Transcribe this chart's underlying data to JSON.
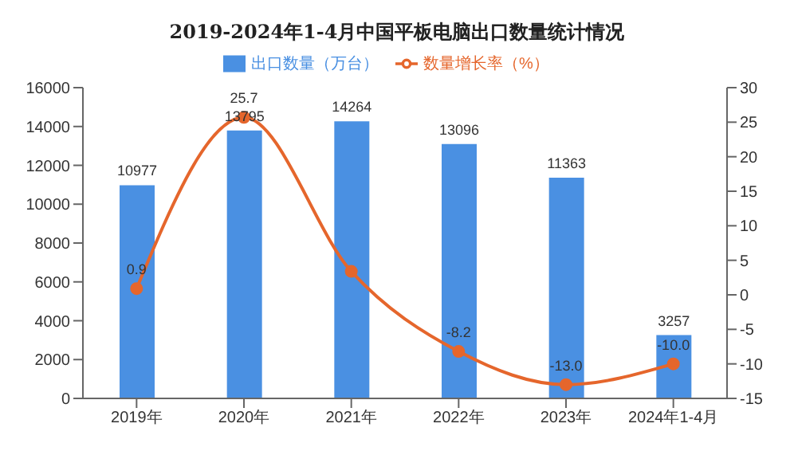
{
  "chart_data": {
    "type": "bar",
    "title": "2019-2024年1-4月中国平板电脑出口数量统计情况",
    "categories": [
      "2019年",
      "2020年",
      "2021年",
      "2022年",
      "2023年",
      "2024年1-4月"
    ],
    "series": [
      {
        "name": "出口数量（万台）",
        "color": "#4a90e2",
        "values": [
          10977,
          13795,
          14264,
          13096,
          11363,
          3257
        ],
        "value_labels": [
          "10977",
          "13795",
          "14264",
          "13096",
          "11363",
          "3257"
        ]
      },
      {
        "name": "数量增长率（%）",
        "type": "line",
        "axis": "y2",
        "color": "#e5662c",
        "values": [
          0.9,
          25.7,
          3.4,
          -8.2,
          -13.0,
          -10.0
        ],
        "value_labels": [
          "0.9",
          "25.7",
          null,
          "-8.2",
          "-13.0",
          "-10.0"
        ]
      }
    ],
    "ylim": [
      0,
      16000
    ],
    "yticks": [
      0,
      2000,
      4000,
      6000,
      8000,
      10000,
      12000,
      14000,
      16000
    ],
    "y2lim": [
      -15,
      30
    ],
    "y2ticks": [
      -15,
      -10,
      -5,
      0,
      5,
      10,
      15,
      20,
      25,
      30
    ],
    "grid": false,
    "legend": "top",
    "marker": "circle"
  }
}
